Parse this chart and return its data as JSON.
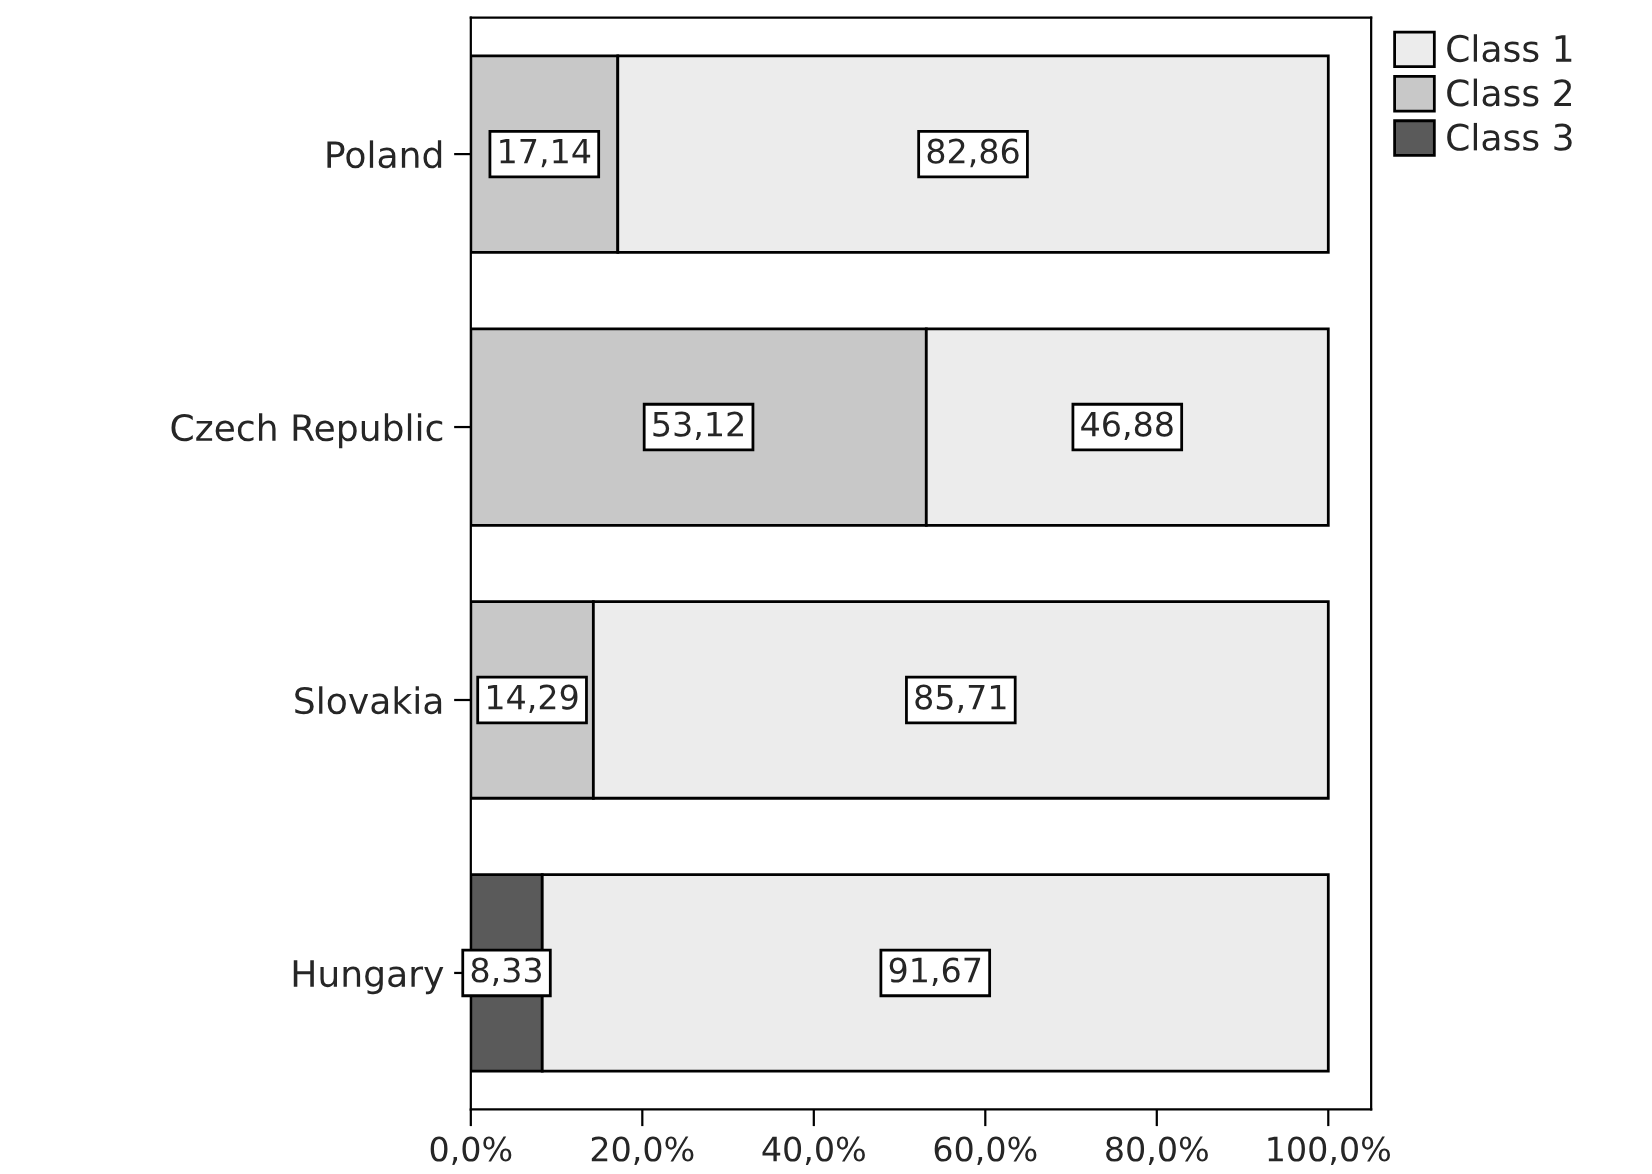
{
  "chart_data": {
    "type": "bar",
    "orientation": "horizontal",
    "stacked": true,
    "categories": [
      "Poland",
      "Czech Republic",
      "Slovakia",
      "Hungary"
    ],
    "series": [
      {
        "name": "Class 3",
        "color": "#5a5a5a",
        "values": [
          null,
          null,
          null,
          8.33
        ],
        "value_labels": [
          null,
          null,
          null,
          "8,33"
        ]
      },
      {
        "name": "Class 2",
        "color": "#c8c8c8",
        "values": [
          17.14,
          53.12,
          14.29,
          null
        ],
        "value_labels": [
          "17,14",
          "53,12",
          "14,29",
          null
        ]
      },
      {
        "name": "Class 1",
        "color": "#ececec",
        "values": [
          82.86,
          46.88,
          85.71,
          91.67
        ],
        "value_labels": [
          "82,86",
          "46,88",
          "85,71",
          "91,67"
        ]
      }
    ],
    "xlim": [
      0,
      105
    ],
    "xticks": [
      {
        "value": 0,
        "label": "0,0%"
      },
      {
        "value": 20,
        "label": "20,0%"
      },
      {
        "value": 40,
        "label": "40,0%"
      },
      {
        "value": 60,
        "label": "60,0%"
      },
      {
        "value": 80,
        "label": "80,0%"
      },
      {
        "value": 100,
        "label": "100,0%"
      }
    ],
    "grid": false,
    "legend": "top right"
  }
}
